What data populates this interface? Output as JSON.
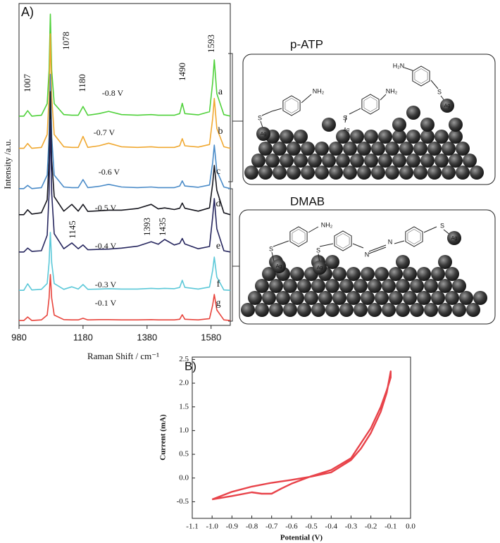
{
  "chart_data": [
    {
      "type": "line",
      "panel": "A)",
      "xlabel": "Raman Shift / cm⁻¹",
      "ylabel": "Intensity /a.u.",
      "x": [
        980,
        995,
        1007,
        1020,
        1050,
        1068,
        1074,
        1078,
        1082,
        1090,
        1120,
        1145,
        1165,
        1180,
        1195,
        1230,
        1260,
        1300,
        1350,
        1393,
        1415,
        1435,
        1465,
        1482,
        1490,
        1498,
        1540,
        1575,
        1585,
        1590,
        1598,
        1620,
        1640
      ],
      "series": [
        {
          "name": "a",
          "color": "#4fd13a",
          "values": [
            65,
            65,
            66.7,
            65,
            65.3,
            68.9,
            79.3,
            96.7,
            79.3,
            68.9,
            65.5,
            65.3,
            65.3,
            68,
            65.3,
            65.8,
            66.5,
            65.5,
            65.3,
            65.5,
            65.3,
            65.3,
            65.3,
            65.8,
            69,
            65.8,
            65.4,
            66.4,
            75.5,
            82.5,
            72,
            65.5,
            65
          ]
        },
        {
          "name": "b",
          "color": "#f0a830",
          "values": [
            55,
            55,
            56.5,
            55,
            55.3,
            59.3,
            71,
            90.6,
            71,
            59.3,
            55.5,
            55.3,
            55.3,
            58.7,
            55.3,
            55.8,
            56.6,
            55.5,
            55.3,
            55.5,
            55.3,
            55.3,
            55.3,
            55.8,
            58,
            55.8,
            55.4,
            56.2,
            64.3,
            70.5,
            61.2,
            55.5,
            55
          ]
        },
        {
          "name": "c",
          "color": "#4a8bc8",
          "values": [
            42.5,
            42.5,
            43.5,
            42.5,
            42.8,
            46.7,
            58.6,
            78,
            58.6,
            46.7,
            43,
            42.8,
            42.8,
            45.3,
            42.8,
            43.2,
            43.8,
            43,
            42.8,
            43,
            42.8,
            42.8,
            42.8,
            43.3,
            44.9,
            43.3,
            42.9,
            43.6,
            50.6,
            56,
            48,
            43,
            42.5
          ]
        },
        {
          "name": "d",
          "color": "#16161e",
          "values": [
            34.4,
            34.4,
            35.9,
            34.6,
            35,
            39,
            51.5,
            72.6,
            51.5,
            40,
            35.5,
            37.6,
            35.5,
            37.6,
            35.4,
            35.6,
            35.8,
            35.8,
            36.3,
            37.6,
            36.2,
            36.5,
            36,
            36.4,
            38,
            36.4,
            35.5,
            36.5,
            44,
            49.7,
            42,
            35,
            34.4
          ]
        },
        {
          "name": "e",
          "color": "#26265e",
          "values": [
            22.8,
            22.8,
            24,
            23,
            23.2,
            28,
            41,
            63.9,
            41,
            28.5,
            23.8,
            25.6,
            23.8,
            25,
            23.5,
            23.6,
            23.7,
            24,
            24.6,
            26,
            25.2,
            26.7,
            25,
            25.5,
            27,
            25.3,
            23.8,
            24.5,
            33.7,
            39.4,
            30,
            23.2,
            22.8
          ]
        },
        {
          "name": "f",
          "color": "#5bc8d8",
          "values": [
            10.9,
            10.9,
            12.9,
            11,
            11.2,
            13,
            19.5,
            28.9,
            19.5,
            13,
            11.2,
            12,
            11.3,
            12.7,
            11.2,
            11.3,
            11.4,
            11.3,
            11.3,
            11.5,
            11.4,
            11.5,
            11.4,
            11.8,
            14,
            11.8,
            11.3,
            11.9,
            17.1,
            21.2,
            15,
            11,
            10.9
          ]
        },
        {
          "name": "g",
          "color": "#e8443c",
          "values": [
            1.5,
            1.5,
            2.6,
            1.5,
            1.7,
            3.2,
            8.5,
            15.8,
            8.5,
            3.2,
            1.8,
            1.7,
            1.7,
            2.2,
            1.7,
            1.8,
            1.8,
            1.7,
            1.7,
            1.8,
            1.7,
            1.7,
            1.7,
            1.9,
            3.3,
            1.9,
            1.7,
            2.1,
            6.3,
            9.6,
            4.8,
            1.7,
            1.5
          ]
        }
      ],
      "xlim": [
        980,
        1640
      ],
      "ylim": [
        0,
        100
      ],
      "xticks": [
        980,
        1180,
        1380,
        1580
      ],
      "peak_labels": [
        "1007",
        "1078",
        "1180",
        "1490",
        "1593",
        "1145",
        "1393",
        "1435"
      ],
      "potential_labels": [
        "-0.8 V",
        "-0.7 V",
        "-0.6 V",
        "-0.5 V",
        "-0.4 V",
        "-0.3 V",
        "-0.1 V"
      ]
    },
    {
      "type": "line",
      "panel": "B)",
      "xlabel": "Potential (V)",
      "ylabel": "Current (mA)",
      "x": [
        -1.0,
        -0.9,
        -0.8,
        -0.7,
        -0.6,
        -0.5,
        -0.4,
        -0.3,
        -0.25,
        -0.2,
        -0.15,
        -0.12,
        -0.1,
        -0.1,
        -0.12,
        -0.15,
        -0.2,
        -0.3,
        -0.4,
        -0.5,
        -0.6,
        -0.65,
        -0.7,
        -0.75,
        -0.8,
        -0.9,
        -1.0
      ],
      "series": [
        {
          "color": "#e8434a",
          "values": [
            -0.45,
            -0.29,
            -0.18,
            -0.1,
            -0.04,
            0.03,
            0.12,
            0.38,
            0.62,
            0.95,
            1.4,
            1.8,
            2.25,
            2.12,
            1.85,
            1.5,
            1.05,
            0.42,
            0.17,
            0.04,
            -0.12,
            -0.22,
            -0.33,
            -0.33,
            -0.3,
            -0.38,
            -0.45
          ]
        }
      ],
      "xlim": [
        -1.1,
        0.0
      ],
      "ylim": [
        -0.85,
        2.55
      ],
      "xticks": [
        -1.1,
        {
          "value": -1,
          "label": "-1.0"
        },
        -0.9,
        -0.8,
        -0.7,
        -0.6,
        -0.5,
        -0.4,
        -0.3,
        -0.2,
        -0.1,
        {
          "value": 0,
          "label": "0.0"
        }
      ],
      "yticks": [
        -0.5,
        {
          "value": 0,
          "label": "0.0"
        },
        0.5,
        {
          "value": 1,
          "label": "1.0"
        },
        1.5,
        {
          "value": 2,
          "label": "2.0"
        },
        2.5
      ]
    }
  ],
  "diagrams": [
    {
      "title": "p-ATP",
      "labels": [
        "NH₂",
        "NH₂",
        "H₂N",
        "S",
        "S",
        "S",
        "Ag",
        "Ag",
        "Ag"
      ]
    },
    {
      "title": "DMAB",
      "labels": [
        "NH₂",
        "S",
        "S",
        "N",
        "N",
        "S",
        "Ag",
        "Ag",
        "Ag"
      ]
    }
  ]
}
